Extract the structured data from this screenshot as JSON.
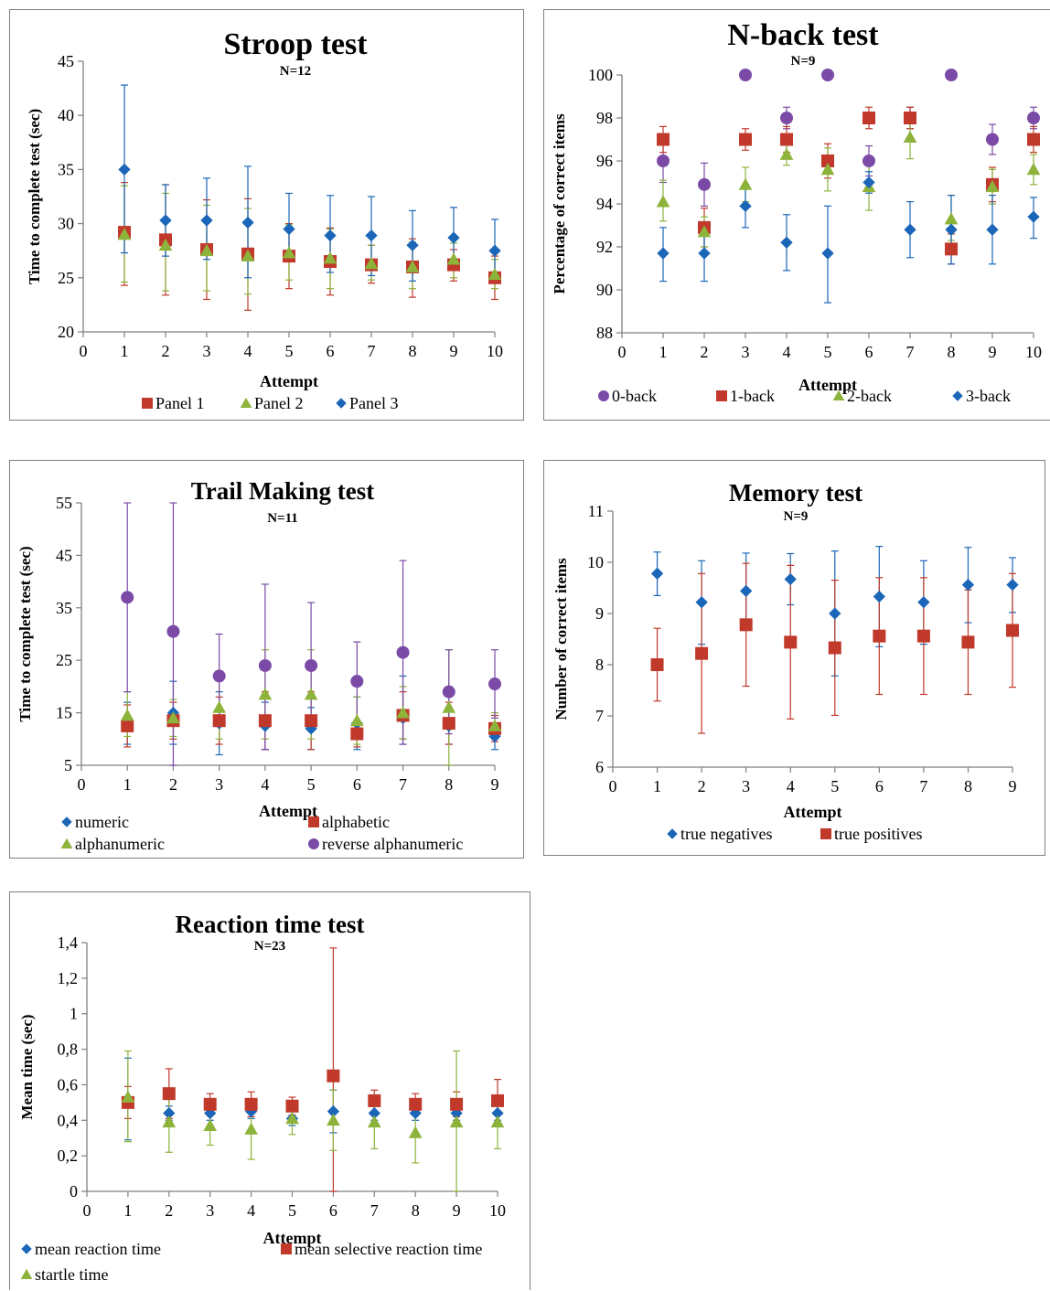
{
  "colors": {
    "red": "#c0392b",
    "green": "#8db33b",
    "blue": "#1b66b8",
    "purple": "#7b4aa6",
    "axis": "#7f7f7f"
  },
  "chart_data": [
    {
      "id": "stroop",
      "type": "scatter",
      "title": "Stroop test",
      "subtitle": "N=12",
      "xlabel": "Attempt",
      "ylabel": "Time to complete test (sec)",
      "xlim": [
        0,
        10
      ],
      "ylim": [
        20,
        45
      ],
      "xticks": [
        "0",
        "1",
        "2",
        "3",
        "4",
        "5",
        "6",
        "7",
        "8",
        "9",
        "10"
      ],
      "yticks": [
        "20",
        "25",
        "30",
        "35",
        "40",
        "45"
      ],
      "ytick_values": [
        20,
        25,
        30,
        35,
        40,
        45
      ],
      "legend_position": "bottom",
      "series": [
        {
          "name": "Panel 1",
          "marker": "square",
          "color": "red",
          "x": [
            1,
            2,
            3,
            4,
            5,
            6,
            7,
            8,
            9,
            10
          ],
          "y": [
            29.2,
            28.5,
            27.6,
            27.2,
            27.0,
            26.5,
            26.2,
            26.0,
            26.2,
            25.0
          ],
          "err_low": [
            24.3,
            23.4,
            23.0,
            22.0,
            24.0,
            23.4,
            24.5,
            23.2,
            24.7,
            23.0
          ],
          "err_high": [
            33.8,
            33.6,
            32.2,
            32.3,
            30.0,
            29.6,
            28.0,
            28.6,
            27.6,
            27.0
          ]
        },
        {
          "name": "Panel 2",
          "marker": "triangle",
          "color": "green",
          "x": [
            1,
            2,
            3,
            4,
            5,
            6,
            7,
            8,
            9,
            10
          ],
          "y": [
            29.0,
            28.0,
            27.5,
            27.0,
            27.3,
            26.8,
            26.3,
            26.0,
            26.7,
            25.3
          ],
          "err_low": [
            24.6,
            23.8,
            23.8,
            23.5,
            24.8,
            24.0,
            24.8,
            24.0,
            25.0,
            24.0
          ],
          "err_high": [
            33.5,
            32.8,
            31.7,
            31.4,
            29.9,
            29.5,
            28.0,
            28.3,
            28.2,
            26.7
          ]
        },
        {
          "name": "Panel 3",
          "marker": "diamond",
          "color": "blue",
          "x": [
            1,
            2,
            3,
            4,
            5,
            6,
            7,
            8,
            9,
            10
          ],
          "y": [
            35.0,
            30.3,
            30.3,
            30.1,
            29.5,
            28.9,
            28.9,
            28.0,
            28.7,
            27.5
          ],
          "err_low": [
            27.3,
            27.0,
            26.7,
            25.0,
            26.6,
            25.5,
            25.2,
            24.7,
            25.8,
            24.7
          ],
          "err_high": [
            42.8,
            33.6,
            34.2,
            35.3,
            32.8,
            32.6,
            32.5,
            31.2,
            31.5,
            30.4
          ]
        }
      ]
    },
    {
      "id": "nback",
      "type": "scatter",
      "title": "N-back test",
      "subtitle": "N=9",
      "xlabel": "Attempt",
      "ylabel": "Percentage of correct items",
      "xlim": [
        0,
        10
      ],
      "ylim": [
        88,
        100
      ],
      "xticks": [
        "0",
        "1",
        "2",
        "3",
        "4",
        "5",
        "6",
        "7",
        "8",
        "9",
        "10"
      ],
      "yticks": [
        "88",
        "90",
        "92",
        "94",
        "96",
        "98",
        "100"
      ],
      "ytick_values": [
        88,
        90,
        92,
        94,
        96,
        98,
        100
      ],
      "legend_position": "bottom",
      "series": [
        {
          "name": "0-back",
          "marker": "circle",
          "color": "purple",
          "x": [
            1,
            2,
            3,
            4,
            5,
            6,
            7,
            8,
            9,
            10
          ],
          "y": [
            96.0,
            94.9,
            100,
            98.0,
            100,
            96.0,
            98.0,
            100,
            97.0,
            98.0
          ],
          "err_low": [
            95.0,
            93.9,
            100,
            97.5,
            100,
            95.3,
            97.5,
            100,
            96.3,
            97.5
          ],
          "err_high": [
            97.0,
            95.9,
            100,
            98.5,
            100,
            96.7,
            98.5,
            100,
            97.7,
            98.5
          ]
        },
        {
          "name": "1-back",
          "marker": "square",
          "color": "red",
          "x": [
            1,
            2,
            3,
            4,
            5,
            6,
            7,
            8,
            9,
            10
          ],
          "y": [
            97.0,
            92.9,
            97.0,
            97.0,
            96.0,
            98.0,
            98.0,
            91.9,
            94.9,
            97.0
          ],
          "err_low": [
            96.4,
            92.0,
            96.5,
            96.4,
            95.2,
            97.5,
            97.5,
            91.2,
            94.1,
            96.4
          ],
          "err_high": [
            97.6,
            93.8,
            97.5,
            97.6,
            96.8,
            98.5,
            98.5,
            92.6,
            95.7,
            97.6
          ]
        },
        {
          "name": "2-back",
          "marker": "triangle",
          "color": "green",
          "x": [
            1,
            2,
            3,
            4,
            5,
            6,
            7,
            8,
            9,
            10
          ],
          "y": [
            94.1,
            92.7,
            94.9,
            96.3,
            95.6,
            94.8,
            97.1,
            93.3,
            94.8,
            95.6
          ],
          "err_low": [
            93.2,
            92.0,
            94.1,
            95.8,
            94.6,
            93.7,
            96.1,
            92.3,
            94.0,
            94.9
          ],
          "err_high": [
            95.1,
            93.4,
            95.7,
            96.8,
            96.6,
            95.9,
            98.1,
            94.4,
            95.6,
            96.3
          ]
        },
        {
          "name": "3-back",
          "marker": "diamond",
          "color": "blue",
          "x": [
            1,
            2,
            3,
            4,
            5,
            6,
            7,
            8,
            9,
            10
          ],
          "y": [
            91.7,
            91.7,
            93.9,
            92.2,
            91.7,
            95.0,
            92.8,
            92.8,
            92.8,
            93.4
          ],
          "err_low": [
            90.4,
            90.4,
            92.9,
            90.9,
            89.4,
            94.5,
            91.5,
            91.2,
            91.2,
            92.4
          ],
          "err_high": [
            92.9,
            93.0,
            94.9,
            93.5,
            93.9,
            95.5,
            94.1,
            94.4,
            94.4,
            94.3
          ]
        }
      ]
    },
    {
      "id": "trail",
      "type": "scatter",
      "title": "Trail Making test",
      "subtitle": "N=11",
      "xlabel": "Attempt",
      "ylabel": "Time to complete test (sec)",
      "xlim": [
        0,
        9
      ],
      "ylim": [
        5,
        55
      ],
      "xticks": [
        "0",
        "1",
        "2",
        "3",
        "4",
        "5",
        "6",
        "7",
        "8",
        "9"
      ],
      "yticks": [
        "5",
        "15",
        "25",
        "35",
        "45",
        "55"
      ],
      "ytick_values": [
        5,
        15,
        25,
        35,
        45,
        55
      ],
      "legend_position": "bottom",
      "series": [
        {
          "name": "numeric",
          "marker": "diamond",
          "color": "blue",
          "x": [
            1,
            2,
            3,
            4,
            5,
            6,
            7,
            8,
            9
          ],
          "y": [
            13.0,
            15.0,
            13.0,
            12.5,
            12.0,
            13.0,
            14.0,
            12.5,
            10.5
          ],
          "err_low": [
            9.0,
            9.0,
            7.0,
            8.0,
            8.0,
            8.0,
            9.0,
            9.0,
            8.0
          ],
          "err_high": [
            17.0,
            21.0,
            19.0,
            17.0,
            16.0,
            18.0,
            22.0,
            16.0,
            13.0
          ]
        },
        {
          "name": "alphabetic",
          "marker": "square",
          "color": "red",
          "x": [
            1,
            2,
            3,
            4,
            5,
            6,
            7,
            8,
            9
          ],
          "y": [
            12.5,
            13.5,
            13.5,
            13.5,
            13.5,
            11.0,
            14.5,
            13.0,
            12.0
          ],
          "err_low": [
            8.5,
            10.0,
            9.0,
            8.0,
            8.0,
            8.5,
            10.0,
            9.0,
            9.5
          ],
          "err_high": [
            16.5,
            17.0,
            18.0,
            19.0,
            19.0,
            13.5,
            19.0,
            17.0,
            14.5
          ]
        },
        {
          "name": "alphanumeric",
          "marker": "triangle",
          "color": "green",
          "x": [
            1,
            2,
            3,
            4,
            5,
            6,
            7,
            8,
            9
          ],
          "y": [
            14.5,
            14.0,
            16.0,
            18.5,
            18.5,
            13.5,
            15.0,
            16.0,
            12.5
          ],
          "err_low": [
            10.5,
            10.5,
            10.0,
            10.0,
            10.0,
            9.0,
            10.0,
            5.0,
            10.0
          ],
          "err_high": [
            19.0,
            17.5,
            22.0,
            27.0,
            27.0,
            18.0,
            20.0,
            27.0,
            15.0
          ]
        },
        {
          "name": "reverse alphanumeric",
          "marker": "circle",
          "color": "purple",
          "x": [
            1,
            2,
            3,
            4,
            5,
            6,
            7,
            8,
            9
          ],
          "y": [
            37.0,
            30.5,
            22.0,
            24.0,
            24.0,
            21.0,
            26.5,
            19.0,
            20.5
          ],
          "err_low": [
            19.0,
            5.0,
            14.0,
            8.0,
            11.5,
            13.5,
            9.0,
            11.0,
            14.0
          ],
          "err_high": [
            55.0,
            55.0,
            30.0,
            39.5,
            36.0,
            28.5,
            44.0,
            27.0,
            27.0
          ]
        }
      ]
    },
    {
      "id": "memory",
      "type": "scatter",
      "title": "Memory test",
      "subtitle": "N=9",
      "xlabel": "Attempt",
      "ylabel": "Number  of correct items",
      "xlim": [
        0,
        9
      ],
      "ylim": [
        6,
        11
      ],
      "xticks": [
        "0",
        "1",
        "2",
        "3",
        "4",
        "5",
        "6",
        "7",
        "8",
        "9"
      ],
      "yticks": [
        "6",
        "7",
        "8",
        "9",
        "10",
        "11"
      ],
      "ytick_values": [
        6,
        7,
        8,
        9,
        10,
        11
      ],
      "legend_position": "bottom",
      "series": [
        {
          "name": "true negatives",
          "marker": "diamond",
          "color": "blue",
          "x": [
            1,
            2,
            3,
            4,
            5,
            6,
            7,
            8,
            9
          ],
          "y": [
            9.78,
            9.22,
            9.44,
            9.67,
            9.0,
            9.33,
            9.22,
            9.56,
            9.56
          ],
          "err_low": [
            9.35,
            8.4,
            8.7,
            9.17,
            7.78,
            8.35,
            8.4,
            8.82,
            9.02
          ],
          "err_high": [
            10.2,
            10.03,
            10.18,
            10.17,
            10.22,
            10.31,
            10.03,
            10.29,
            10.09
          ]
        },
        {
          "name": "true positives",
          "marker": "square",
          "color": "red",
          "x": [
            1,
            2,
            3,
            4,
            5,
            6,
            7,
            8,
            9
          ],
          "y": [
            8.0,
            8.22,
            8.78,
            8.44,
            8.33,
            8.56,
            8.56,
            8.44,
            8.67
          ],
          "err_low": [
            7.29,
            6.66,
            7.58,
            6.94,
            7.01,
            7.42,
            7.42,
            7.42,
            7.56
          ],
          "err_high": [
            8.71,
            9.78,
            9.98,
            9.94,
            9.65,
            9.7,
            9.7,
            9.46,
            9.78
          ]
        }
      ]
    },
    {
      "id": "react",
      "type": "scatter",
      "title": "Reaction time test",
      "subtitle": "N=23",
      "xlabel": "Attempt",
      "ylabel": "Mean time (sec)",
      "xlim": [
        0,
        10
      ],
      "ylim": [
        0,
        1.4
      ],
      "xticks": [
        "0",
        "1",
        "2",
        "3",
        "4",
        "5",
        "6",
        "7",
        "8",
        "9",
        "10"
      ],
      "yticks": [
        "0",
        "0,2",
        "0,4",
        "0,6",
        "0,8",
        "1",
        "1,2",
        "1,4"
      ],
      "ytick_values": [
        0,
        0.2,
        0.4,
        0.6,
        0.8,
        1.0,
        1.2,
        1.4
      ],
      "legend_position": "bottom",
      "series": [
        {
          "name": "mean reaction time",
          "marker": "diamond",
          "color": "blue",
          "x": [
            1,
            2,
            3,
            4,
            5,
            6,
            7,
            8,
            9,
            10
          ],
          "y": [
            0.5,
            0.44,
            0.44,
            0.45,
            0.41,
            0.45,
            0.44,
            0.44,
            0.44,
            0.44
          ],
          "err_low": [
            0.29,
            0.4,
            0.4,
            0.41,
            0.37,
            0.33,
            0.4,
            0.4,
            0.4,
            0.4
          ],
          "err_high": [
            0.75,
            0.48,
            0.48,
            0.49,
            0.45,
            0.57,
            0.48,
            0.48,
            0.48,
            0.48
          ]
        },
        {
          "name": "mean selective reaction time",
          "marker": "square",
          "color": "red",
          "x": [
            1,
            2,
            3,
            4,
            5,
            6,
            7,
            8,
            9,
            10
          ],
          "y": [
            0.5,
            0.55,
            0.49,
            0.49,
            0.48,
            0.65,
            0.51,
            0.49,
            0.49,
            0.51
          ],
          "err_low": [
            0.41,
            0.41,
            0.43,
            0.42,
            0.43,
            0.0,
            0.45,
            0.43,
            0.42,
            0.39
          ],
          "err_high": [
            0.59,
            0.69,
            0.55,
            0.56,
            0.53,
            1.37,
            0.57,
            0.55,
            0.56,
            0.63
          ]
        },
        {
          "name": "startle time",
          "marker": "triangle",
          "color": "green",
          "x": [
            1,
            2,
            3,
            4,
            5,
            6,
            7,
            8,
            9,
            10
          ],
          "y": [
            0.53,
            0.39,
            0.37,
            0.35,
            0.41,
            0.4,
            0.39,
            0.33,
            0.39,
            0.39
          ],
          "err_low": [
            0.28,
            0.22,
            0.26,
            0.18,
            0.32,
            0.23,
            0.24,
            0.16,
            0.0,
            0.24
          ],
          "err_high": [
            0.79,
            0.56,
            0.48,
            0.52,
            0.5,
            0.57,
            0.54,
            0.5,
            0.79,
            0.54
          ]
        }
      ]
    }
  ]
}
